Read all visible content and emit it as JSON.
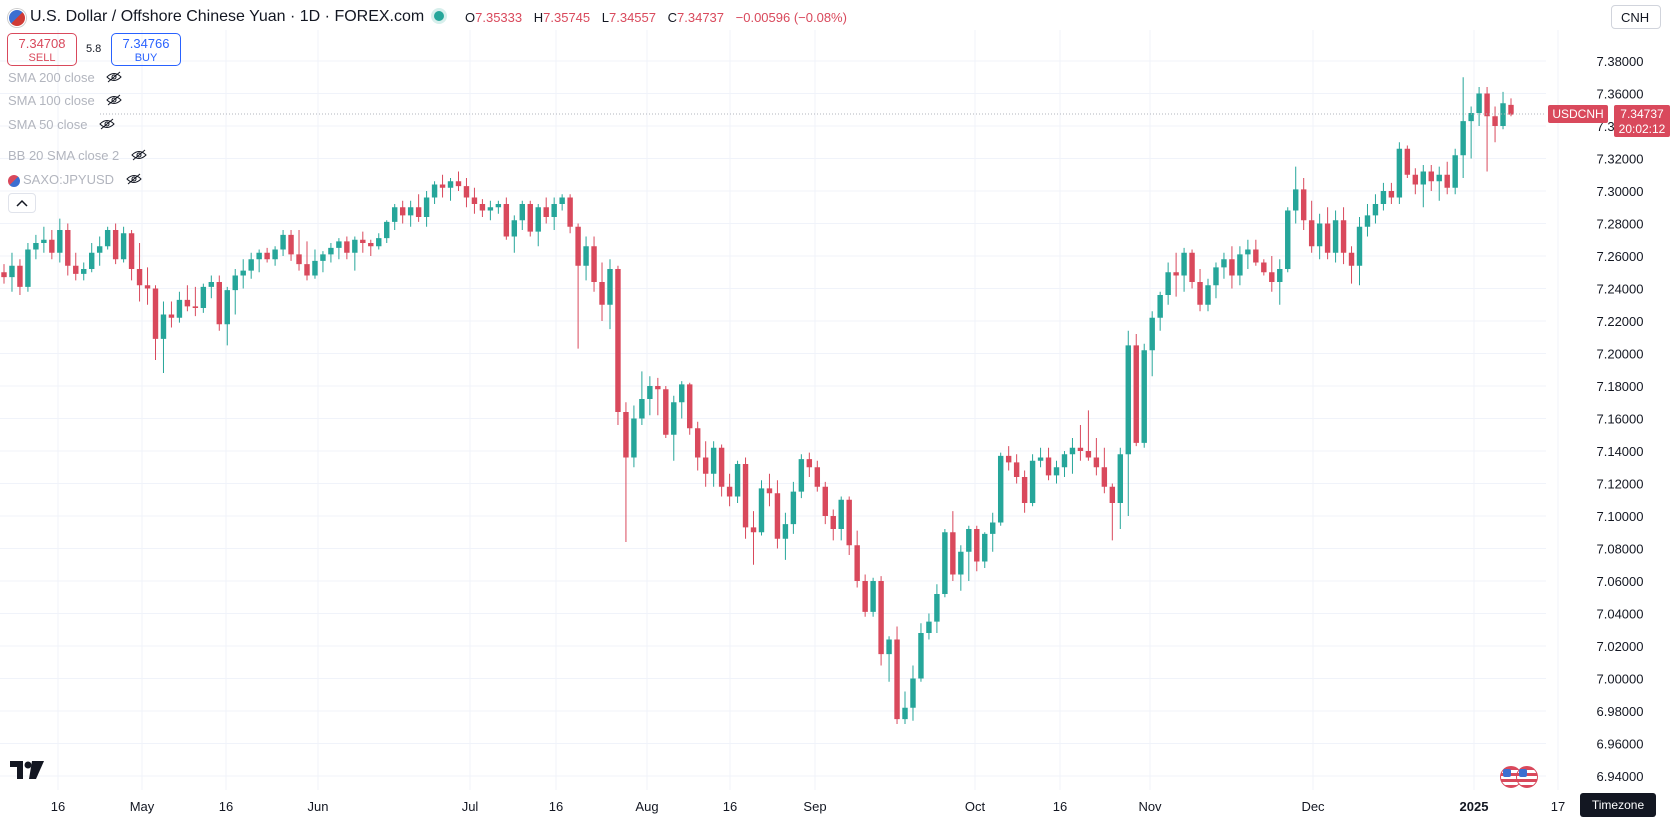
{
  "header": {
    "title": "U.S. Dollar / Offshore Chinese Yuan · 1D · FOREX.com",
    "ohlc": {
      "o_label": "O",
      "o": "7.35333",
      "h_label": "H",
      "h": "7.35745",
      "l_label": "L",
      "l": "7.34557",
      "c_label": "C",
      "c": "7.34737",
      "change": "−0.00596 (−0.08%)"
    },
    "currency": "CNH"
  },
  "trade": {
    "sell_price": "7.34708",
    "sell_label": "SELL",
    "spread": "5.8",
    "buy_price": "7.34766",
    "buy_label": "BUY"
  },
  "indicators": [
    {
      "label": "SMA 200 close"
    },
    {
      "label": "SMA 100 close"
    },
    {
      "label": "SMA 50 close"
    },
    {
      "label": "BB 20 SMA close 2"
    },
    {
      "label": "SAXO:JPYUSD"
    }
  ],
  "price_tag": {
    "symbol": "USDCNH",
    "price": "7.34737",
    "countdown": "20:02:12"
  },
  "timezone_label": "Timezone",
  "colors": {
    "up": "#26a69a",
    "down": "#d9495c",
    "grid": "#f0f3fa",
    "text": "#131722"
  },
  "chart_data": {
    "type": "candlestick",
    "y_axis": {
      "min": 6.93,
      "max": 7.4,
      "ticks": [
        "7.38000",
        "7.36000",
        "7.34000",
        "7.32000",
        "7.30000",
        "7.28000",
        "7.26000",
        "7.24000",
        "7.22000",
        "7.20000",
        "7.18000",
        "7.16000",
        "7.14000",
        "7.12000",
        "7.10000",
        "7.08000",
        "7.06000",
        "7.04000",
        "7.02000",
        "7.00000",
        "6.98000",
        "6.96000",
        "6.94000"
      ]
    },
    "x_ticks": [
      "16",
      "May",
      "16",
      "Jun",
      "Jul",
      "16",
      "Aug",
      "16",
      "Sep",
      "Oct",
      "16",
      "Nov",
      "Dec",
      "2025",
      "17"
    ],
    "last_price": 7.34737,
    "candles": [
      [
        7.25,
        7.255,
        7.243,
        7.247
      ],
      [
        7.247,
        7.262,
        7.238,
        7.254
      ],
      [
        7.254,
        7.258,
        7.236,
        7.241
      ],
      [
        7.241,
        7.268,
        7.238,
        7.264
      ],
      [
        7.264,
        7.273,
        7.258,
        7.268
      ],
      [
        7.268,
        7.278,
        7.262,
        7.27
      ],
      [
        7.27,
        7.276,
        7.258,
        7.262
      ],
      [
        7.262,
        7.283,
        7.256,
        7.276
      ],
      [
        7.276,
        7.28,
        7.248,
        7.254
      ],
      [
        7.254,
        7.262,
        7.245,
        7.249
      ],
      [
        7.249,
        7.256,
        7.245,
        7.252
      ],
      [
        7.252,
        7.268,
        7.25,
        7.262
      ],
      [
        7.262,
        7.272,
        7.254,
        7.266
      ],
      [
        7.266,
        7.278,
        7.264,
        7.276
      ],
      [
        7.276,
        7.28,
        7.255,
        7.258
      ],
      [
        7.258,
        7.278,
        7.256,
        7.274
      ],
      [
        7.274,
        7.276,
        7.245,
        7.252
      ],
      [
        7.252,
        7.268,
        7.232,
        7.242
      ],
      [
        7.242,
        7.253,
        7.23,
        7.24
      ],
      [
        7.24,
        7.242,
        7.196,
        7.209
      ],
      [
        7.209,
        7.232,
        7.188,
        7.224
      ],
      [
        7.224,
        7.232,
        7.216,
        7.222
      ],
      [
        7.222,
        7.238,
        7.219,
        7.233
      ],
      [
        7.233,
        7.242,
        7.226,
        7.229
      ],
      [
        7.229,
        7.241,
        7.223,
        7.228
      ],
      [
        7.228,
        7.243,
        7.225,
        7.241
      ],
      [
        7.241,
        7.248,
        7.234,
        7.244
      ],
      [
        7.244,
        7.248,
        7.214,
        7.218
      ],
      [
        7.218,
        7.241,
        7.205,
        7.239
      ],
      [
        7.239,
        7.252,
        7.224,
        7.248
      ],
      [
        7.248,
        7.258,
        7.24,
        7.251
      ],
      [
        7.251,
        7.262,
        7.246,
        7.258
      ],
      [
        7.258,
        7.264,
        7.25,
        7.262
      ],
      [
        7.262,
        7.265,
        7.256,
        7.258
      ],
      [
        7.258,
        7.266,
        7.254,
        7.264
      ],
      [
        7.264,
        7.276,
        7.26,
        7.273
      ],
      [
        7.273,
        7.276,
        7.257,
        7.261
      ],
      [
        7.261,
        7.276,
        7.251,
        7.255
      ],
      [
        7.255,
        7.269,
        7.245,
        7.248
      ],
      [
        7.248,
        7.264,
        7.246,
        7.257
      ],
      [
        7.257,
        7.263,
        7.25,
        7.261
      ],
      [
        7.261,
        7.268,
        7.256,
        7.265
      ],
      [
        7.265,
        7.271,
        7.258,
        7.269
      ],
      [
        7.269,
        7.272,
        7.258,
        7.262
      ],
      [
        7.262,
        7.272,
        7.251,
        7.27
      ],
      [
        7.27,
        7.275,
        7.262,
        7.268
      ],
      [
        7.268,
        7.27,
        7.26,
        7.266
      ],
      [
        7.266,
        7.274,
        7.264,
        7.271
      ],
      [
        7.271,
        7.282,
        7.268,
        7.281
      ],
      [
        7.281,
        7.292,
        7.276,
        7.29
      ],
      [
        7.29,
        7.294,
        7.28,
        7.285
      ],
      [
        7.285,
        7.294,
        7.278,
        7.29
      ],
      [
        7.29,
        7.298,
        7.281,
        7.284
      ],
      [
        7.284,
        7.3,
        7.278,
        7.296
      ],
      [
        7.296,
        7.306,
        7.292,
        7.304
      ],
      [
        7.304,
        7.31,
        7.296,
        7.302
      ],
      [
        7.302,
        7.308,
        7.294,
        7.306
      ],
      [
        7.306,
        7.312,
        7.3,
        7.303
      ],
      [
        7.303,
        7.308,
        7.29,
        7.296
      ],
      [
        7.296,
        7.302,
        7.286,
        7.292
      ],
      [
        7.292,
        7.295,
        7.284,
        7.288
      ],
      [
        7.288,
        7.294,
        7.282,
        7.29
      ],
      [
        7.29,
        7.294,
        7.286,
        7.292
      ],
      [
        7.292,
        7.296,
        7.27,
        7.272
      ],
      [
        7.272,
        7.285,
        7.262,
        7.282
      ],
      [
        7.282,
        7.294,
        7.276,
        7.292
      ],
      [
        7.292,
        7.294,
        7.272,
        7.275
      ],
      [
        7.275,
        7.292,
        7.266,
        7.29
      ],
      [
        7.29,
        7.296,
        7.28,
        7.284
      ],
      [
        7.284,
        7.296,
        7.276,
        7.292
      ],
      [
        7.292,
        7.298,
        7.288,
        7.296
      ],
      [
        7.296,
        7.298,
        7.274,
        7.278
      ],
      [
        7.278,
        7.28,
        7.203,
        7.254
      ],
      [
        7.254,
        7.272,
        7.245,
        7.266
      ],
      [
        7.266,
        7.272,
        7.238,
        7.244
      ],
      [
        7.244,
        7.256,
        7.22,
        7.23
      ],
      [
        7.23,
        7.258,
        7.215,
        7.252
      ],
      [
        7.252,
        7.254,
        7.156,
        7.164
      ],
      [
        7.164,
        7.17,
        7.084,
        7.136
      ],
      [
        7.136,
        7.168,
        7.13,
        7.16
      ],
      [
        7.16,
        7.189,
        7.156,
        7.172
      ],
      [
        7.172,
        7.186,
        7.162,
        7.18
      ],
      [
        7.18,
        7.185,
        7.162,
        7.178
      ],
      [
        7.178,
        7.18,
        7.148,
        7.15
      ],
      [
        7.15,
        7.174,
        7.134,
        7.17
      ],
      [
        7.17,
        7.183,
        7.16,
        7.181
      ],
      [
        7.181,
        7.182,
        7.15,
        7.154
      ],
      [
        7.154,
        7.158,
        7.128,
        7.136
      ],
      [
        7.136,
        7.146,
        7.118,
        7.126
      ],
      [
        7.126,
        7.146,
        7.118,
        7.142
      ],
      [
        7.142,
        7.144,
        7.112,
        7.118
      ],
      [
        7.118,
        7.126,
        7.106,
        7.112
      ],
      [
        7.112,
        7.134,
        7.108,
        7.132
      ],
      [
        7.132,
        7.136,
        7.086,
        7.093
      ],
      [
        7.093,
        7.103,
        7.07,
        7.09
      ],
      [
        7.09,
        7.122,
        7.088,
        7.117
      ],
      [
        7.117,
        7.126,
        7.106,
        7.114
      ],
      [
        7.114,
        7.122,
        7.08,
        7.086
      ],
      [
        7.086,
        7.102,
        7.073,
        7.095
      ],
      [
        7.095,
        7.121,
        7.089,
        7.115
      ],
      [
        7.115,
        7.138,
        7.111,
        7.135
      ],
      [
        7.135,
        7.139,
        7.124,
        7.13
      ],
      [
        7.13,
        7.134,
        7.115,
        7.118
      ],
      [
        7.118,
        7.121,
        7.095,
        7.1
      ],
      [
        7.1,
        7.104,
        7.085,
        7.092
      ],
      [
        7.092,
        7.112,
        7.085,
        7.11
      ],
      [
        7.11,
        7.112,
        7.076,
        7.082
      ],
      [
        7.082,
        7.091,
        7.056,
        7.06
      ],
      [
        7.06,
        7.064,
        7.038,
        7.041
      ],
      [
        7.041,
        7.062,
        7.038,
        7.06
      ],
      [
        7.06,
        7.063,
        7.008,
        7.015
      ],
      [
        7.015,
        7.026,
        6.998,
        7.024
      ],
      [
        7.024,
        7.032,
        6.972,
        6.975
      ],
      [
        6.975,
        6.992,
        6.972,
        6.982
      ],
      [
        6.982,
        7.008,
        6.974,
        7.0
      ],
      [
        7.0,
        7.034,
        6.998,
        7.028
      ],
      [
        7.028,
        7.04,
        7.024,
        7.035
      ],
      [
        7.035,
        7.058,
        7.028,
        7.052
      ],
      [
        7.052,
        7.092,
        7.05,
        7.09
      ],
      [
        7.09,
        7.103,
        7.06,
        7.064
      ],
      [
        7.064,
        7.082,
        7.054,
        7.078
      ],
      [
        7.078,
        7.094,
        7.06,
        7.092
      ],
      [
        7.092,
        7.094,
        7.066,
        7.072
      ],
      [
        7.072,
        7.09,
        7.068,
        7.089
      ],
      [
        7.089,
        7.102,
        7.078,
        7.096
      ],
      [
        7.096,
        7.139,
        7.094,
        7.137
      ],
      [
        7.137,
        7.143,
        7.128,
        7.133
      ],
      [
        7.133,
        7.138,
        7.12,
        7.124
      ],
      [
        7.124,
        7.128,
        7.102,
        7.108
      ],
      [
        7.108,
        7.138,
        7.106,
        7.134
      ],
      [
        7.134,
        7.142,
        7.13,
        7.136
      ],
      [
        7.136,
        7.142,
        7.122,
        7.125
      ],
      [
        7.125,
        7.134,
        7.12,
        7.13
      ],
      [
        7.13,
        7.14,
        7.124,
        7.138
      ],
      [
        7.138,
        7.148,
        7.126,
        7.142
      ],
      [
        7.142,
        7.156,
        7.134,
        7.14
      ],
      [
        7.14,
        7.165,
        7.134,
        7.136
      ],
      [
        7.136,
        7.148,
        7.125,
        7.13
      ],
      [
        7.13,
        7.142,
        7.114,
        7.118
      ],
      [
        7.118,
        7.12,
        7.085,
        7.108
      ],
      [
        7.108,
        7.142,
        7.092,
        7.138
      ],
      [
        7.138,
        7.214,
        7.1,
        7.205
      ],
      [
        7.205,
        7.212,
        7.143,
        7.145
      ],
      [
        7.145,
        7.206,
        7.142,
        7.202
      ],
      [
        7.202,
        7.226,
        7.186,
        7.222
      ],
      [
        7.222,
        7.238,
        7.214,
        7.236
      ],
      [
        7.236,
        7.256,
        7.23,
        7.25
      ],
      [
        7.25,
        7.262,
        7.235,
        7.248
      ],
      [
        7.248,
        7.265,
        7.238,
        7.262
      ],
      [
        7.262,
        7.264,
        7.24,
        7.244
      ],
      [
        7.244,
        7.252,
        7.226,
        7.23
      ],
      [
        7.23,
        7.246,
        7.226,
        7.242
      ],
      [
        7.242,
        7.256,
        7.234,
        7.253
      ],
      [
        7.253,
        7.262,
        7.246,
        7.258
      ],
      [
        7.258,
        7.266,
        7.24,
        7.248
      ],
      [
        7.248,
        7.266,
        7.242,
        7.261
      ],
      [
        7.261,
        7.27,
        7.252,
        7.264
      ],
      [
        7.264,
        7.27,
        7.254,
        7.256
      ],
      [
        7.256,
        7.258,
        7.248,
        7.25
      ],
      [
        7.25,
        7.26,
        7.238,
        7.244
      ],
      [
        7.244,
        7.258,
        7.23,
        7.252
      ],
      [
        7.252,
        7.29,
        7.25,
        7.288
      ],
      [
        7.288,
        7.315,
        7.28,
        7.301
      ],
      [
        7.301,
        7.308,
        7.276,
        7.282
      ],
      [
        7.282,
        7.294,
        7.262,
        7.266
      ],
      [
        7.266,
        7.286,
        7.258,
        7.28
      ],
      [
        7.28,
        7.29,
        7.258,
        7.262
      ],
      [
        7.262,
        7.288,
        7.256,
        7.282
      ],
      [
        7.282,
        7.29,
        7.255,
        7.262
      ],
      [
        7.262,
        7.266,
        7.243,
        7.254
      ],
      [
        7.254,
        7.284,
        7.242,
        7.278
      ],
      [
        7.278,
        7.292,
        7.272,
        7.285
      ],
      [
        7.285,
        7.298,
        7.28,
        7.292
      ],
      [
        7.292,
        7.305,
        7.288,
        7.3
      ],
      [
        7.3,
        7.305,
        7.292,
        7.296
      ],
      [
        7.296,
        7.33,
        7.292,
        7.326
      ],
      [
        7.326,
        7.328,
        7.308,
        7.31
      ],
      [
        7.31,
        7.314,
        7.298,
        7.304
      ],
      [
        7.304,
        7.316,
        7.29,
        7.312
      ],
      [
        7.312,
        7.316,
        7.3,
        7.306
      ],
      [
        7.306,
        7.315,
        7.294,
        7.31
      ],
      [
        7.31,
        7.318,
        7.298,
        7.302
      ],
      [
        7.302,
        7.326,
        7.298,
        7.322
      ],
      [
        7.322,
        7.37,
        7.308,
        7.343
      ],
      [
        7.343,
        7.352,
        7.32,
        7.348
      ],
      [
        7.348,
        7.364,
        7.34,
        7.36
      ],
      [
        7.36,
        7.364,
        7.312,
        7.346
      ],
      [
        7.346,
        7.352,
        7.33,
        7.34
      ],
      [
        7.34,
        7.361,
        7.338,
        7.354
      ],
      [
        7.353,
        7.357,
        7.346,
        7.347
      ]
    ]
  }
}
